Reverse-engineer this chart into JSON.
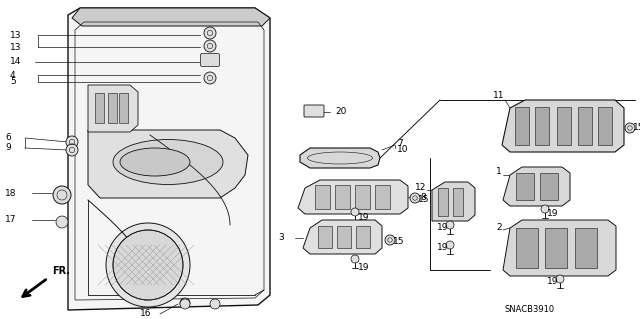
{
  "bg_color": "#ffffff",
  "diagram_code": "SNACB3910",
  "line_color": "#111111",
  "fill_light": "#e8e8e8",
  "fill_med": "#cccccc",
  "fill_dark": "#aaaaaa"
}
